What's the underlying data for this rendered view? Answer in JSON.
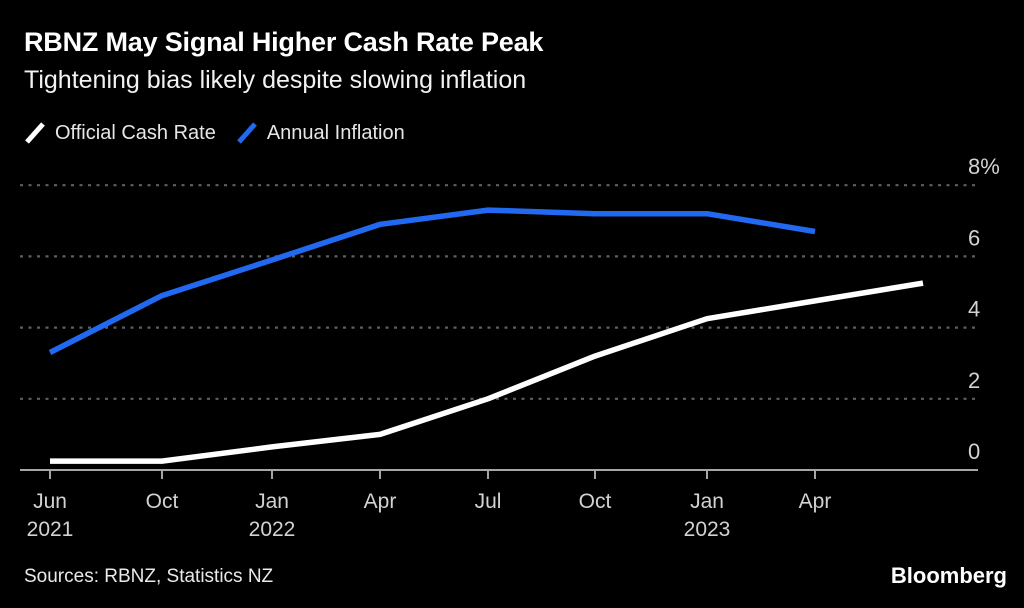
{
  "header": {
    "title": "RBNZ May Signal Higher Cash Rate Peak",
    "subtitle": "Tightening bias likely despite slowing inflation"
  },
  "footer": {
    "sources_label": "Sources: RBNZ, Statistics NZ",
    "brand": "Bloomberg"
  },
  "colors": {
    "background": "#000000",
    "accent_blue": "#2269f2",
    "line_white": "#ffffff",
    "grid": "#5f5f5f",
    "axis_line": "#a6a6a6",
    "tick_text": "#d2d2d2"
  },
  "chart_data": {
    "type": "line",
    "title": "RBNZ May Signal Higher Cash Rate Peak",
    "subtitle": "Tightening bias likely despite slowing inflation",
    "unit": "%",
    "legend_position": "top-left",
    "grid": "dotted horizontal gridlines, solid zero baseline",
    "x_axis": {
      "categories": [
        {
          "month": "Jun",
          "year": "2021"
        },
        {
          "month": "Oct"
        },
        {
          "month": "Jan",
          "year": "2022"
        },
        {
          "month": "Apr"
        },
        {
          "month": "Jul"
        },
        {
          "month": "Oct"
        },
        {
          "month": "Jan",
          "year": "2023"
        },
        {
          "month": "Apr"
        }
      ]
    },
    "y_axis": {
      "range": [
        0,
        8.3
      ],
      "ticks": [
        {
          "value": 8,
          "label": "8%"
        },
        {
          "value": 6,
          "label": "6"
        },
        {
          "value": 4,
          "label": "4"
        },
        {
          "value": 2,
          "label": "2"
        },
        {
          "value": 0,
          "label": "0"
        }
      ]
    },
    "series": [
      {
        "name": "Annual Inflation",
        "color": "#2269f2",
        "points": [
          {
            "x": 0,
            "y": 3.3
          },
          {
            "x": 1,
            "y": 4.9
          },
          {
            "x": 2,
            "y": 5.9
          },
          {
            "x": 3,
            "y": 6.9
          },
          {
            "x": 4,
            "y": 7.3
          },
          {
            "x": 5,
            "y": 7.2
          },
          {
            "x": 6,
            "y": 7.2
          },
          {
            "x": 7,
            "y": 6.7
          }
        ]
      },
      {
        "name": "Official Cash Rate",
        "color": "#ffffff",
        "points": [
          {
            "x": 0,
            "y": 0.25
          },
          {
            "x": 1,
            "y": 0.25
          },
          {
            "x": 2,
            "y": 0.65
          },
          {
            "x": 3,
            "y": 1.0
          },
          {
            "x": 4,
            "y": 2.0
          },
          {
            "x": 5,
            "y": 3.2
          },
          {
            "x": 6,
            "y": 4.25
          },
          {
            "x": 7,
            "y": 4.75
          },
          {
            "x": 8,
            "y": 5.25
          }
        ]
      }
    ]
  }
}
